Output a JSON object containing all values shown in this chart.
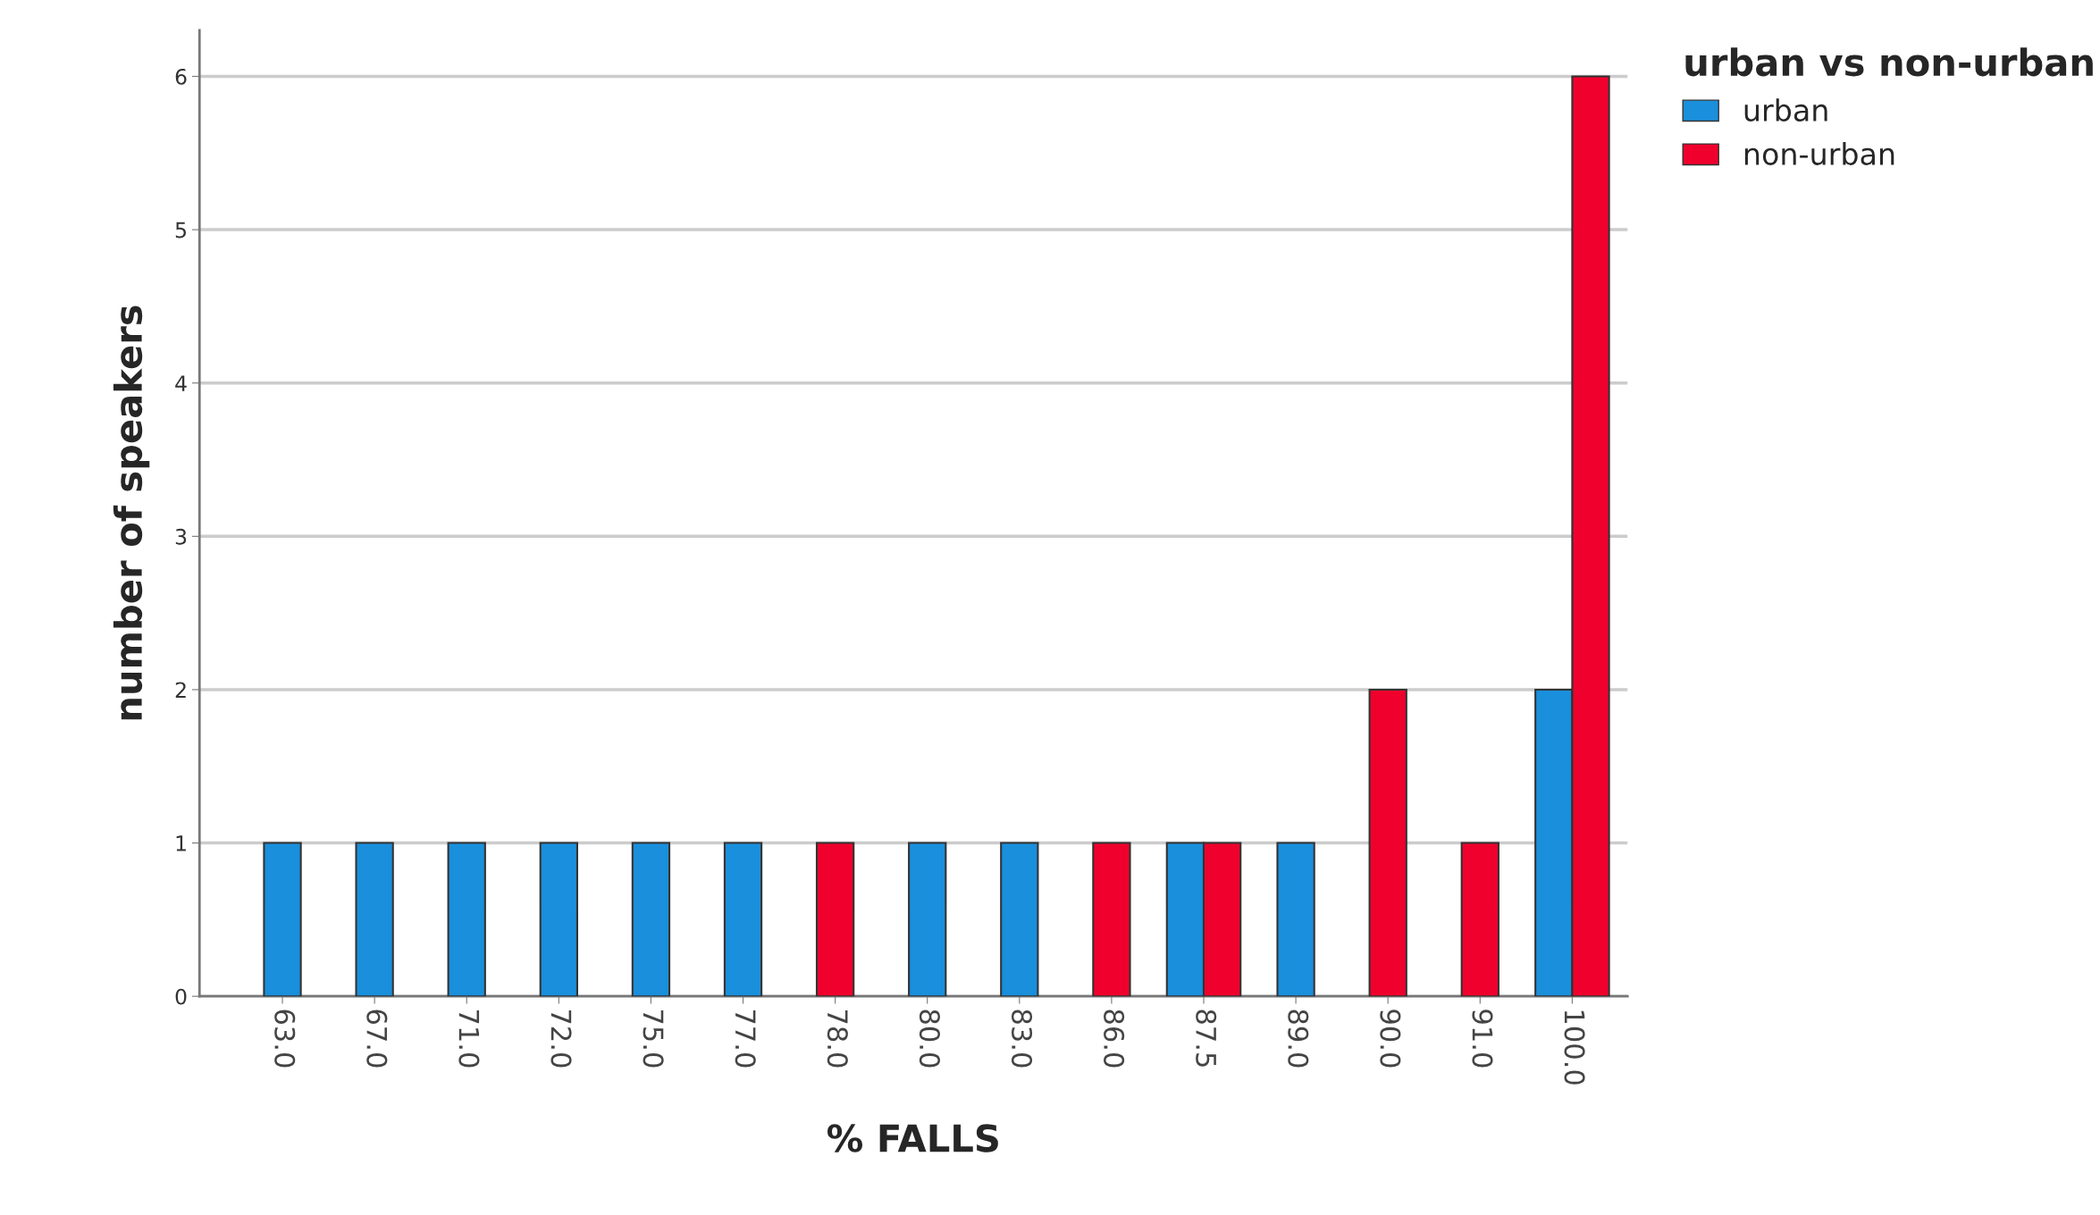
{
  "chart_data": {
    "type": "bar",
    "xlabel": "% FALLS",
    "ylabel": "number of speakers",
    "legend_title": "urban vs non-urban",
    "categories": [
      "63.0",
      "67.0",
      "71.0",
      "72.0",
      "75.0",
      "77.0",
      "78.0",
      "80.0",
      "83.0",
      "86.0",
      "87.5",
      "89.0",
      "90.0",
      "91.0",
      "100.0"
    ],
    "series": [
      {
        "name": "urban",
        "color": "#1a8fdc",
        "values": [
          1,
          1,
          1,
          1,
          1,
          1,
          null,
          1,
          1,
          null,
          1,
          1,
          null,
          null,
          2
        ]
      },
      {
        "name": "non-urban",
        "color": "#f0002c",
        "values": [
          null,
          null,
          null,
          null,
          null,
          null,
          1,
          null,
          null,
          1,
          1,
          null,
          2,
          1,
          6
        ]
      }
    ],
    "ylim": [
      0,
      6.3
    ],
    "yticks": [
      0,
      1,
      2,
      3,
      4,
      5,
      6
    ],
    "grid": "y",
    "legend": "top right"
  }
}
